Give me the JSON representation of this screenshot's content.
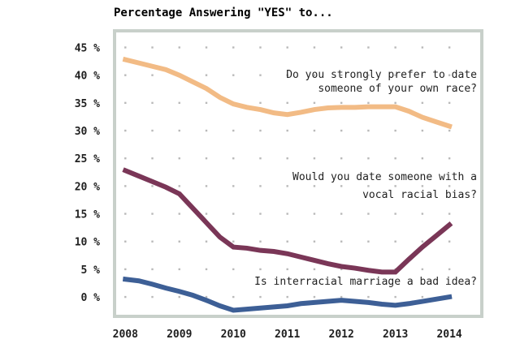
{
  "chart_data": {
    "type": "line",
    "title": "Percentage Answering \"YES\" to...",
    "xlabel": "",
    "ylabel": "",
    "x": [
      2008,
      2009,
      2010,
      2011,
      2012,
      2013,
      2014
    ],
    "x_tick_labels": [
      "2008",
      "2009",
      "2010",
      "2011",
      "2012",
      "2013",
      "2014"
    ],
    "y_tick_labels": [
      "0 %",
      "5 %",
      "10 %",
      "15 %",
      "20 %",
      "25 %",
      "30 %",
      "35 %",
      "40 %",
      "45 %"
    ],
    "xlim": [
      2007.8,
      2014.6
    ],
    "ylim": [
      -3.5,
      48
    ],
    "grid": "dotted",
    "series": [
      {
        "name": "Do you strongly prefer to date someone of your own race?",
        "annotation": [
          "Do you strongly prefer to date",
          "someone of your own race?"
        ],
        "color": "#f2bb85",
        "points": [
          [
            2008.0,
            42.8
          ],
          [
            2008.25,
            42.2
          ],
          [
            2008.5,
            41.6
          ],
          [
            2008.75,
            41.0
          ],
          [
            2009.0,
            40.0
          ],
          [
            2009.25,
            38.8
          ],
          [
            2009.5,
            37.6
          ],
          [
            2009.75,
            36.0
          ],
          [
            2010.0,
            34.8
          ],
          [
            2010.25,
            34.2
          ],
          [
            2010.5,
            33.8
          ],
          [
            2010.75,
            33.2
          ],
          [
            2011.0,
            32.9
          ],
          [
            2011.25,
            33.3
          ],
          [
            2011.5,
            33.8
          ],
          [
            2011.75,
            34.1
          ],
          [
            2012.0,
            34.2
          ],
          [
            2012.25,
            34.2
          ],
          [
            2012.5,
            34.3
          ],
          [
            2012.75,
            34.3
          ],
          [
            2013.0,
            34.3
          ],
          [
            2013.25,
            33.5
          ],
          [
            2013.5,
            32.4
          ],
          [
            2013.75,
            31.6
          ],
          [
            2014.0,
            30.8
          ]
        ]
      },
      {
        "name": "Would you date someone with a vocal racial bias?",
        "annotation": [
          "Would you date someone with a",
          "vocal racial bias?"
        ],
        "color": "#7a3657",
        "points": [
          [
            2008.0,
            22.8
          ],
          [
            2008.25,
            21.8
          ],
          [
            2008.5,
            20.8
          ],
          [
            2008.75,
            19.8
          ],
          [
            2009.0,
            18.6
          ],
          [
            2009.25,
            16.0
          ],
          [
            2009.5,
            13.4
          ],
          [
            2009.75,
            10.8
          ],
          [
            2010.0,
            9.0
          ],
          [
            2010.25,
            8.8
          ],
          [
            2010.5,
            8.4
          ],
          [
            2010.75,
            8.2
          ],
          [
            2011.0,
            7.8
          ],
          [
            2011.25,
            7.2
          ],
          [
            2011.5,
            6.6
          ],
          [
            2011.75,
            6.0
          ],
          [
            2012.0,
            5.5
          ],
          [
            2012.25,
            5.2
          ],
          [
            2012.5,
            4.8
          ],
          [
            2012.75,
            4.5
          ],
          [
            2013.0,
            4.5
          ],
          [
            2013.25,
            6.8
          ],
          [
            2013.5,
            9.0
          ],
          [
            2013.75,
            11.0
          ],
          [
            2014.0,
            13.0
          ]
        ]
      },
      {
        "name": "Is interracial marriage a bad idea?",
        "annotation": [
          "Is interracial marriage a bad idea?"
        ],
        "color": "#3d5f96",
        "points": [
          [
            2008.0,
            3.2
          ],
          [
            2008.25,
            2.9
          ],
          [
            2008.5,
            2.3
          ],
          [
            2008.75,
            1.6
          ],
          [
            2009.0,
            1.0
          ],
          [
            2009.25,
            0.3
          ],
          [
            2009.5,
            -0.6
          ],
          [
            2009.75,
            -1.6
          ],
          [
            2010.0,
            -2.4
          ],
          [
            2010.25,
            -2.2
          ],
          [
            2010.5,
            -2.0
          ],
          [
            2010.75,
            -1.8
          ],
          [
            2011.0,
            -1.6
          ],
          [
            2011.25,
            -1.2
          ],
          [
            2011.5,
            -1.0
          ],
          [
            2011.75,
            -0.8
          ],
          [
            2012.0,
            -0.6
          ],
          [
            2012.25,
            -0.8
          ],
          [
            2012.5,
            -1.0
          ],
          [
            2012.75,
            -1.3
          ],
          [
            2013.0,
            -1.5
          ],
          [
            2013.25,
            -1.2
          ],
          [
            2013.5,
            -0.8
          ],
          [
            2013.75,
            -0.4
          ],
          [
            2014.0,
            0.0
          ]
        ]
      }
    ]
  },
  "style": {
    "background": "#ffffff",
    "frame": "#c8d0ca",
    "grid": "#b9b9b9",
    "text": "#1f1f1f"
  }
}
